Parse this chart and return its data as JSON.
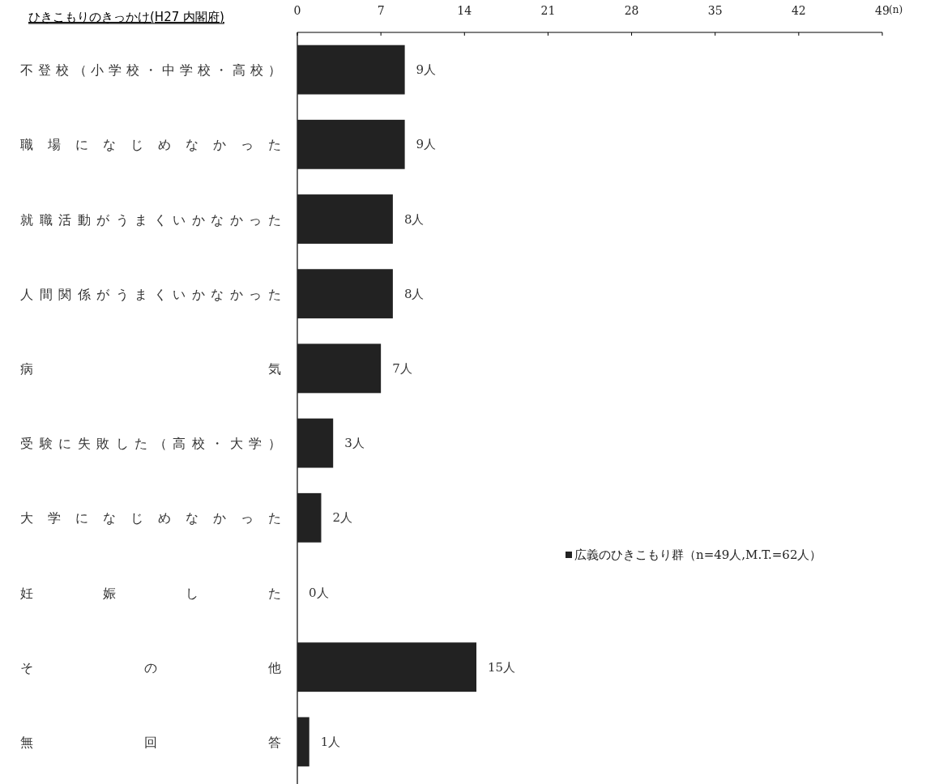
{
  "chart_data": {
    "type": "bar",
    "orientation": "horizontal",
    "title": "ひきこもりのきっかけ(H27 内閣府)",
    "xlabel": "(n)",
    "categories": [
      "不登校（小学校・中学校・高校）",
      "職場になじめなかった",
      "就職活動がうまくいかなかった",
      "人間関係がうまくいかなかった",
      "病気",
      "受験に失敗した（高校・大学）",
      "大学になじめなかった",
      "妊娠した",
      "その他",
      "無回答"
    ],
    "series": [
      {
        "name": "広義のひきこもり群（n=49人,M.T.=62人）",
        "color": "#222222",
        "values": [
          9,
          9,
          8,
          8,
          7,
          3,
          2,
          0,
          15,
          1
        ],
        "value_labels": [
          "9人",
          "9人",
          "8人",
          "8人",
          "7人",
          "3人",
          "2人",
          "0人",
          "15人",
          "1人"
        ]
      }
    ],
    "xlim": [
      0,
      49
    ],
    "xticks": [
      0,
      7,
      14,
      21,
      28,
      35,
      42,
      49
    ],
    "legend": "right",
    "grid": false
  }
}
